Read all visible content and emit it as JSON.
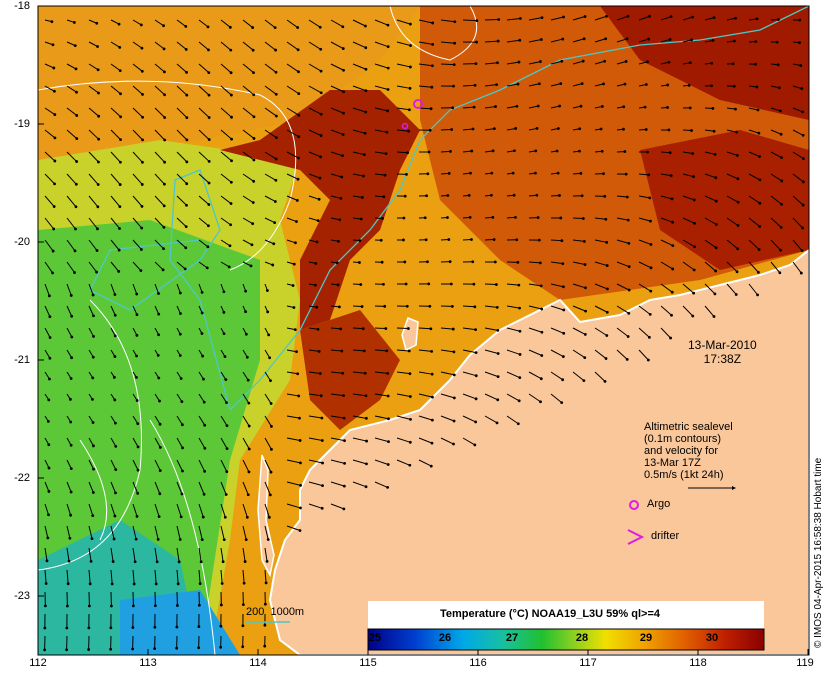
{
  "map": {
    "lat_ticks": [
      "-18",
      "-19",
      "-20",
      "-21",
      "-22",
      "-23"
    ],
    "lon_ticks": [
      "112",
      "113",
      "114",
      "115",
      "116",
      "117",
      "118",
      "119"
    ]
  },
  "overlay": {
    "date": "13-Mar-2010",
    "time": "17:38Z",
    "legend_lines": [
      "Altimetric sealevel",
      "(0.1m contours)",
      "and velocity for",
      "13-Mar 17Z",
      "0.5m/s (1kt 24h)"
    ],
    "argo_label": "Argo",
    "drifter_label": "drifter",
    "isobath_label": "200  1000m"
  },
  "colorbar": {
    "title": "Temperature (°C) NOAA19_L3U 59% ql>=4",
    "ticks": [
      "25",
      "26",
      "27",
      "28",
      "29",
      "30"
    ]
  },
  "credit": "© IMOS 04-Apr-2015 16:58:38 Hobart time",
  "colors": {
    "land": "#f9c79a",
    "isobath": "#4ec7c7",
    "contour": "#ffffff",
    "argo": "#e01ce0"
  }
}
